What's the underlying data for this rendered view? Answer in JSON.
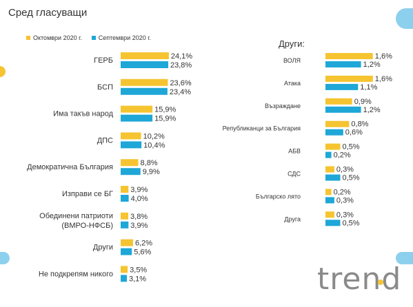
{
  "header": {
    "title": "Сред гласуващи",
    "right_title": "Други:"
  },
  "legend": {
    "items": [
      {
        "label": "Октомври 2020 г.",
        "color": "#f5c430"
      },
      {
        "label": "Септември 2020 г.",
        "color": "#1ea7d7"
      }
    ]
  },
  "logo": {
    "text": "trend"
  },
  "chart_data": [
    {
      "type": "bar",
      "orientation": "horizontal",
      "title": "Сред гласуващи",
      "categories": [
        "ГЕРБ",
        "БСП",
        "Има такъв народ",
        "ДПС",
        "Демократична България",
        "Изправи се БГ",
        "Обединени патриоти\n(ВМРО-НФСБ)",
        "Други",
        "Не подкрепям никого"
      ],
      "series": [
        {
          "name": "Октомври 2020 г.",
          "color": "#f5c430",
          "values": [
            24.1,
            23.6,
            15.9,
            10.2,
            8.8,
            3.9,
            3.8,
            6.2,
            3.5
          ],
          "labels": [
            "24,1%",
            "23,6%",
            "15,9%",
            "10,2%",
            "8,8%",
            "3,9%",
            "3,8%",
            "6,2%",
            "3,5%"
          ]
        },
        {
          "name": "Септември 2020 г.",
          "color": "#1ea7d7",
          "values": [
            23.8,
            23.4,
            15.9,
            10.4,
            9.9,
            4.0,
            3.9,
            5.6,
            3.1
          ],
          "labels": [
            "23,8%",
            "23,4%",
            "15,9%",
            "10,4%",
            "9,9%",
            "4,0%",
            "3,9%",
            "5,6%",
            "3,1%"
          ]
        }
      ],
      "legend": "top-left",
      "grid": false
    },
    {
      "type": "bar",
      "orientation": "horizontal",
      "title": "Други:",
      "categories": [
        "ВОЛЯ",
        "Атака",
        "Възраждане",
        "Републиканци за България",
        "АБВ",
        "СДС",
        "Българско лято",
        "Друга"
      ],
      "series": [
        {
          "name": "Октомври 2020 г.",
          "color": "#f5c430",
          "values": [
            1.6,
            1.6,
            0.9,
            0.8,
            0.5,
            0.3,
            0.2,
            0.3
          ],
          "labels": [
            "1,6%",
            "1,6%",
            "0,9%",
            "0,8%",
            "0,5%",
            "0,3%",
            "0,2%",
            "0,3%"
          ]
        },
        {
          "name": "Септември 2020 г.",
          "color": "#1ea7d7",
          "values": [
            1.2,
            1.1,
            1.2,
            0.6,
            0.2,
            0.5,
            0.3,
            0.5
          ],
          "labels": [
            "1,2%",
            "1,1%",
            "1,2%",
            "0,6%",
            "0,2%",
            "0,5%",
            "0,3%",
            "0,5%"
          ]
        }
      ],
      "grid": false
    }
  ]
}
